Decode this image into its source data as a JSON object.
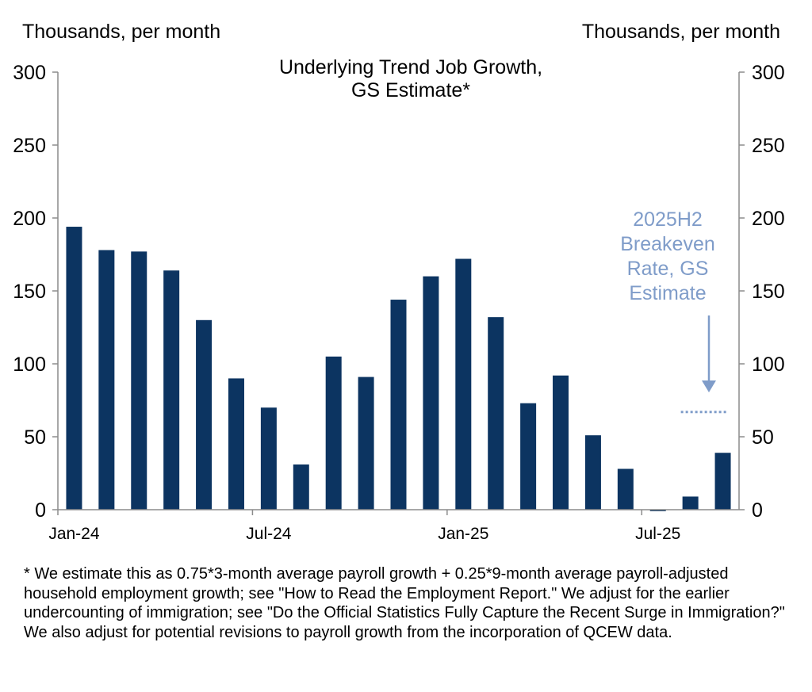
{
  "left_axis_unit": "Thousands, per month",
  "right_axis_unit": "Thousands, per month",
  "chart_data": {
    "type": "bar",
    "title_lines": [
      "Underlying Trend Job Growth,",
      "GS Estimate*"
    ],
    "categories": [
      "Jan-24",
      "Feb-24",
      "Mar-24",
      "Apr-24",
      "May-24",
      "Jun-24",
      "Jul-24",
      "Aug-24",
      "Sep-24",
      "Oct-24",
      "Nov-24",
      "Dec-24",
      "Jan-25",
      "Feb-25",
      "Mar-25",
      "Apr-25",
      "May-25",
      "Jun-25",
      "Jul-25",
      "Aug-25",
      "Sep-25"
    ],
    "series": [
      {
        "values": [
          194,
          178,
          177,
          164,
          130,
          90,
          70,
          31,
          105,
          91,
          144,
          160,
          172,
          132,
          73,
          92,
          51,
          28,
          -1,
          9,
          39
        ]
      }
    ],
    "x_tick_labels": [
      {
        "index": 0,
        "label": "Jan-24"
      },
      {
        "index": 6,
        "label": "Jul-24"
      },
      {
        "index": 12,
        "label": "Jan-25"
      },
      {
        "index": 18,
        "label": "Jul-25"
      }
    ],
    "ylim": [
      0,
      300
    ],
    "yticks": [
      0,
      50,
      100,
      150,
      200,
      250,
      300
    ],
    "reference_line": {
      "value": 67,
      "from_index": 19,
      "to_index": 20,
      "style": "dotted",
      "color": "#7f9cc9",
      "label_lines": [
        "2025H2",
        "Breakeven",
        "Rate, GS",
        "Estimate"
      ]
    },
    "bar_color": "#0c3461",
    "axis_color": "#8c8c8c",
    "grid": false
  },
  "footnote": "* We estimate this as 0.75*3-month average payroll growth + 0.25*9-month average payroll-adjusted household employment growth; see \"How to Read the Employment Report.\" We adjust for the earlier undercounting of immigration; see \"Do the Official Statistics Fully Capture the Recent Surge in Immigration?\" We also adjust for potential revisions to payroll growth from the incorporation of QCEW data."
}
